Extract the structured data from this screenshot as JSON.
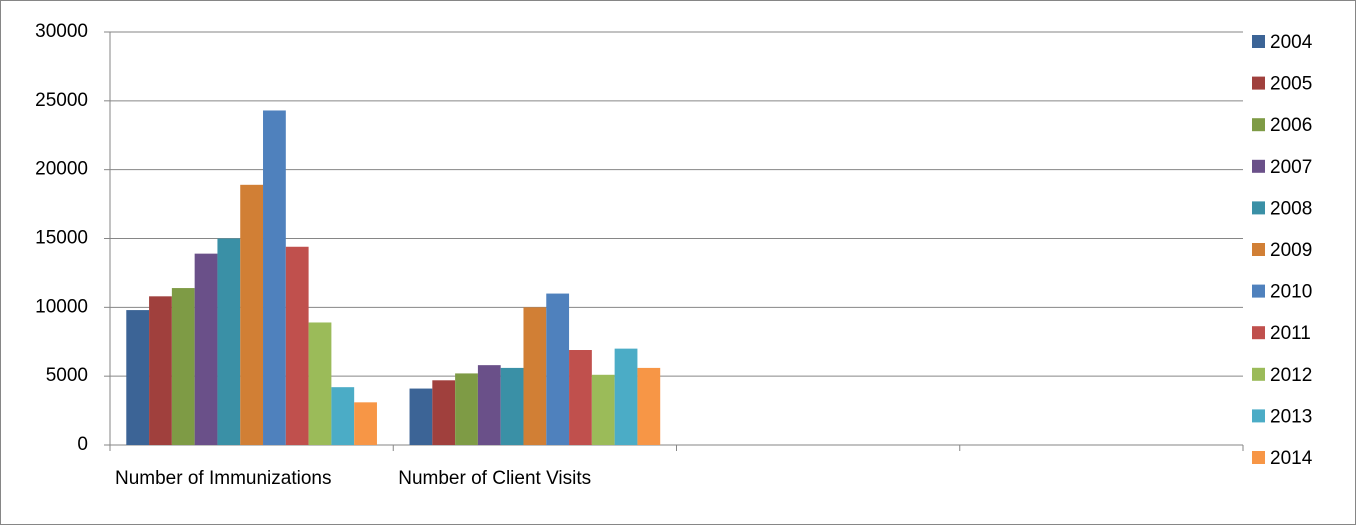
{
  "chart_data": {
    "type": "bar",
    "categories": [
      "Number of Immunizations",
      "Number of Client Visits",
      null,
      null
    ],
    "series": [
      {
        "name": "2004",
        "color": "#3c6496",
        "values": [
          9800,
          4100,
          null,
          null
        ]
      },
      {
        "name": "2005",
        "color": "#a0403d",
        "values": [
          10800,
          4700,
          null,
          null
        ]
      },
      {
        "name": "2006",
        "color": "#7e9b45",
        "values": [
          11400,
          5200,
          null,
          null
        ]
      },
      {
        "name": "2007",
        "color": "#6a5089",
        "values": [
          13900,
          5800,
          null,
          null
        ]
      },
      {
        "name": "2008",
        "color": "#3a90a6",
        "values": [
          15000,
          5600,
          null,
          null
        ]
      },
      {
        "name": "2009",
        "color": "#d17f35",
        "values": [
          18900,
          10000,
          null,
          null
        ]
      },
      {
        "name": "2010",
        "color": "#4f81bd",
        "values": [
          24300,
          11000,
          null,
          null
        ]
      },
      {
        "name": "2011",
        "color": "#c0504d",
        "values": [
          14400,
          6900,
          null,
          null
        ]
      },
      {
        "name": "2012",
        "color": "#9bbb59",
        "values": [
          8900,
          5100,
          null,
          null
        ]
      },
      {
        "name": "2013",
        "color": "#4bacc6",
        "values": [
          4200,
          7000,
          null,
          null
        ]
      },
      {
        "name": "2014",
        "color": "#f79646",
        "values": [
          3100,
          5600,
          null,
          null
        ]
      }
    ],
    "ylim": [
      0,
      30000
    ],
    "yticks": [
      0,
      5000,
      10000,
      15000,
      20000,
      25000,
      30000
    ],
    "grid": true,
    "legend": "right"
  }
}
